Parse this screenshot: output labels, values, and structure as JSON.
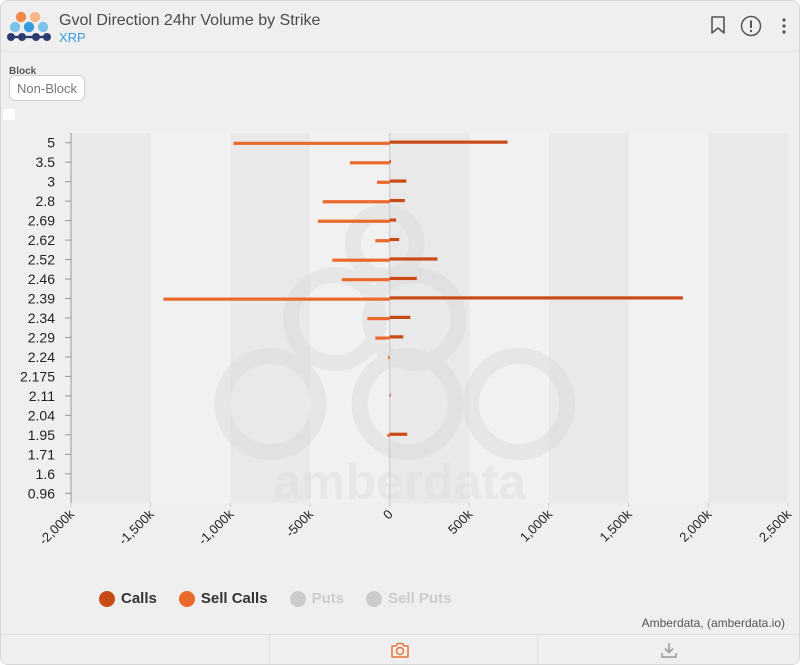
{
  "header": {
    "title": "Gvol Direction 24hr Volume by Strike",
    "subtitle": "XRP"
  },
  "controls": {
    "block_label": "Block",
    "block_value": "Non-Block"
  },
  "credit": "Amberdata, (amberdata.io)",
  "watermark": "amberdata",
  "icons": [
    "bookmark-icon",
    "info-icon",
    "more-icon",
    "camera-icon",
    "download-icon"
  ],
  "colors": {
    "calls": "#c84a16",
    "sell_calls": "#ea6a2c",
    "inactive": "#cccccc",
    "axis_text": "#222222",
    "accent": "#3a9be0"
  },
  "legend": [
    {
      "label": "Calls",
      "color": "#c84a16",
      "active": true
    },
    {
      "label": "Sell Calls",
      "color": "#ea6a2c",
      "active": true
    },
    {
      "label": "Puts",
      "color": "#cccccc",
      "active": false
    },
    {
      "label": "Sell Puts",
      "color": "#cccccc",
      "active": false
    }
  ],
  "chart_data": {
    "type": "bar",
    "orientation": "horizontal",
    "title": "Gvol Direction 24hr Volume by Strike",
    "xlabel": "",
    "ylabel": "",
    "xlim": [
      -2000000,
      2500000
    ],
    "xticks": [
      -2000000,
      -1500000,
      -1000000,
      -500000,
      0,
      500000,
      1000000,
      1500000,
      2000000,
      2500000
    ],
    "xtick_labels": [
      "-2,000k",
      "-1,500k",
      "-1,000k",
      "-500k",
      "0",
      "500k",
      "1,000k",
      "1,500k",
      "2,000k",
      "2,500k"
    ],
    "strike_labels": [
      "5",
      "3.5",
      "3",
      "2.8",
      "2.69",
      "2.62",
      "2.52",
      "2.46",
      "2.39",
      "2.34",
      "2.29",
      "2.24",
      "2.175",
      "2.11",
      "2.04",
      "1.95",
      "1.71",
      "1.6",
      "0.96"
    ],
    "grid": false,
    "legend_position": "bottom",
    "series": [
      {
        "name": "Calls",
        "values": [
          {
            "strike": "5",
            "value": 740000
          },
          {
            "strike": "3.5",
            "value": 8000
          },
          {
            "strike": "3",
            "value": 105000
          },
          {
            "strike": "2.8",
            "value": 95000
          },
          {
            "strike": "2.69",
            "value": 40000
          },
          {
            "strike": "2.62",
            "value": 60000
          },
          {
            "strike": "2.52",
            "value": 300000
          },
          {
            "strike": "2.46",
            "value": 170000
          },
          {
            "strike": "2.39",
            "value": 1840000
          },
          {
            "strike": "2.34",
            "value": 130000
          },
          {
            "strike": "2.29",
            "value": 85000
          },
          {
            "strike": "2.11",
            "value": 5000
          },
          {
            "strike": "1.95",
            "value": 110000
          }
        ]
      },
      {
        "name": "Sell Calls",
        "values": [
          {
            "strike": "5",
            "value": -980000
          },
          {
            "strike": "3.5",
            "value": -250000
          },
          {
            "strike": "3",
            "value": -80000
          },
          {
            "strike": "2.8",
            "value": -420000
          },
          {
            "strike": "2.69",
            "value": -450000
          },
          {
            "strike": "2.62",
            "value": -90000
          },
          {
            "strike": "2.52",
            "value": -360000
          },
          {
            "strike": "2.46",
            "value": -300000
          },
          {
            "strike": "2.39",
            "value": -1420000
          },
          {
            "strike": "2.34",
            "value": -140000
          },
          {
            "strike": "2.29",
            "value": -90000
          },
          {
            "strike": "2.24",
            "value": -10000
          },
          {
            "strike": "1.95",
            "value": -15000
          }
        ]
      }
    ]
  }
}
